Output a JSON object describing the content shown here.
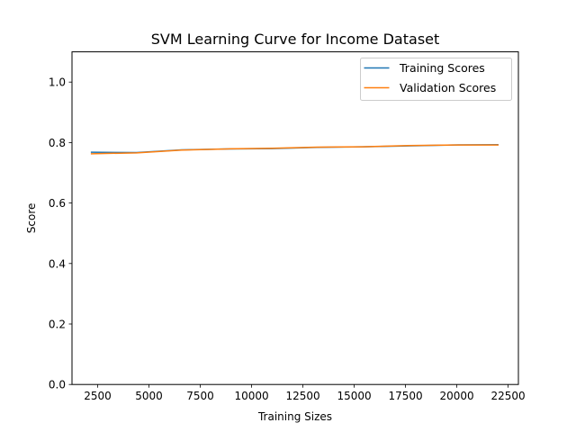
{
  "chart_data": {
    "type": "line",
    "title": "SVM Learning Curve for Income Dataset",
    "xlabel": "Training Sizes",
    "ylabel": "Score",
    "xlim": [
      1250,
      23000
    ],
    "ylim": [
      0.0,
      1.1
    ],
    "xticks": [
      2500,
      5000,
      7500,
      10000,
      12500,
      15000,
      17500,
      20000,
      22500
    ],
    "xtick_labels": [
      "2500",
      "5000",
      "7500",
      "10000",
      "12500",
      "15000",
      "17500",
      "20000",
      "22500"
    ],
    "yticks": [
      0.0,
      0.2,
      0.4,
      0.6,
      0.8,
      1.0
    ],
    "ytick_labels": [
      "0.0",
      "0.2",
      "0.4",
      "0.6",
      "0.8",
      "1.0"
    ],
    "grid": false,
    "legend_position": "top-right",
    "x": [
      2200,
      4400,
      6600,
      8800,
      11000,
      13200,
      15400,
      17600,
      19800,
      22000
    ],
    "series": [
      {
        "name": "Training Scores",
        "color": "#1f77b4",
        "values": [
          0.768,
          0.767,
          0.776,
          0.779,
          0.78,
          0.784,
          0.786,
          0.789,
          0.792,
          0.793
        ]
      },
      {
        "name": "Validation Scores",
        "color": "#ff7f0e",
        "values": [
          0.763,
          0.766,
          0.775,
          0.779,
          0.781,
          0.785,
          0.786,
          0.79,
          0.792,
          0.792
        ]
      }
    ]
  }
}
